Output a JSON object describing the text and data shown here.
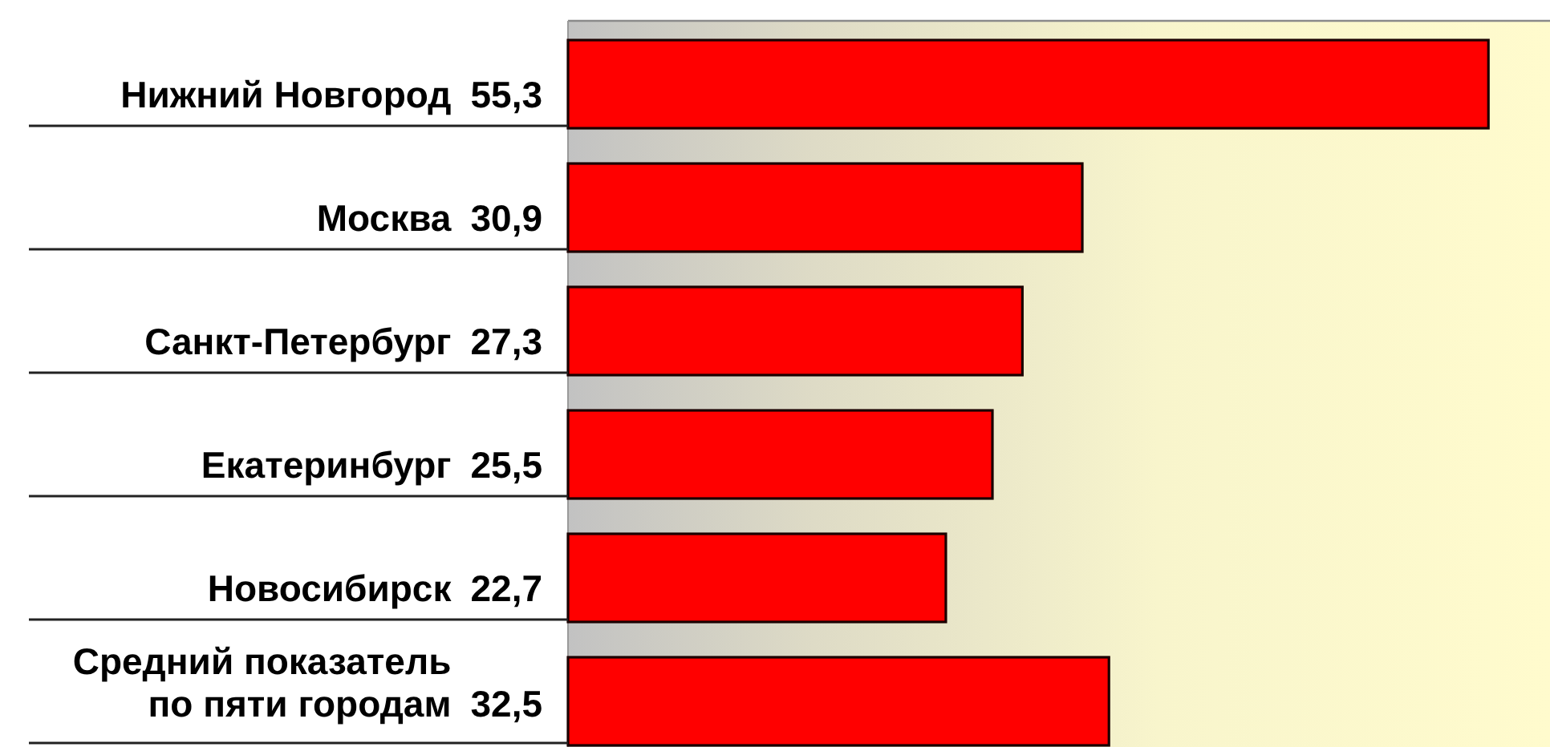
{
  "chart_data": {
    "type": "bar",
    "orientation": "horizontal",
    "categories": [
      "Нижний Новгород",
      "Москва",
      "Санкт-Петербург",
      "Екатеринбург",
      "Новосибирск",
      "Средний показатель по пяти городам"
    ],
    "values": [
      55.3,
      30.9,
      27.3,
      25.5,
      22.7,
      32.5
    ],
    "value_labels": [
      "55,3",
      "30,9",
      "27,3",
      "25,5",
      "22,7",
      "32,5"
    ],
    "color": "#ff0000",
    "xlim": [
      0,
      59
    ]
  }
}
